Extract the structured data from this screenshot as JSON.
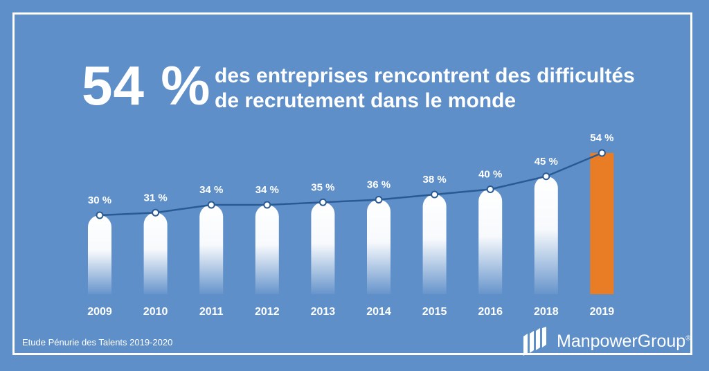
{
  "header": {
    "stat": "54 %",
    "line1": "des entreprises rencontrent des difficultés",
    "line2": "de recrutement dans le monde"
  },
  "footer": {
    "source": "Etude Pénurie des Talents 2019-2020",
    "brand": "ManpowerGroup"
  },
  "colors": {
    "background": "#5f8fc9",
    "bar": "#ffffff",
    "highlight_bar": "#e87d25",
    "line": "#2a5a93"
  },
  "chart_data": {
    "type": "bar",
    "categories": [
      "2009",
      "2010",
      "2011",
      "2012",
      "2013",
      "2014",
      "2015",
      "2016",
      "2018",
      "2019"
    ],
    "values": [
      30,
      31,
      34,
      34,
      35,
      36,
      38,
      40,
      45,
      54
    ],
    "data_labels": [
      "30 %",
      "31 %",
      "34 %",
      "34 %",
      "35 %",
      "36 %",
      "38 %",
      "40 %",
      "45 %",
      "54 %"
    ],
    "highlight": "2019",
    "overlay_line": true,
    "grid": false,
    "legend": "none"
  }
}
